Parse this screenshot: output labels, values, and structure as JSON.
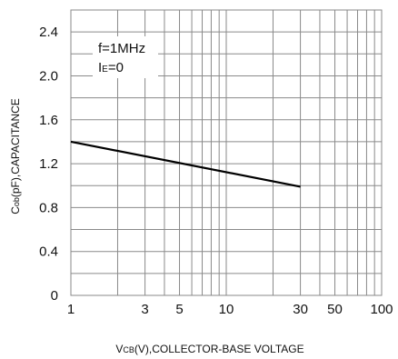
{
  "chart_data": {
    "type": "line",
    "x_scale": "log",
    "xlim": [
      1,
      100
    ],
    "ylim": [
      0,
      2.6
    ],
    "x_ticks": [
      1,
      3,
      5,
      10,
      30,
      50,
      100
    ],
    "x_tick_labels": [
      "1",
      "3",
      "5",
      "10",
      "30",
      "50",
      "100"
    ],
    "y_ticks": [
      0,
      0.4,
      0.8,
      1.2,
      1.6,
      2.0,
      2.4
    ],
    "y_tick_labels": [
      "0",
      "0.4",
      "0.8",
      "1.2",
      "1.6",
      "2.0",
      "2.4"
    ],
    "grid": true,
    "xlabel": {
      "main": "V",
      "sub": "CB",
      "rest": "(V),COLLECTOR-BASE VOLTAGE"
    },
    "ylabel": {
      "main": "C",
      "sub": "ob",
      "rest": "(pF),CAPACITANCE"
    },
    "annotations": {
      "line1": "f=1MHz",
      "line2_main": "I",
      "line2_sub": "E",
      "line2_rest": "=0"
    },
    "series": [
      {
        "x": [
          1,
          30
        ],
        "y": [
          1.4,
          0.99
        ],
        "color": "#000000"
      }
    ]
  }
}
